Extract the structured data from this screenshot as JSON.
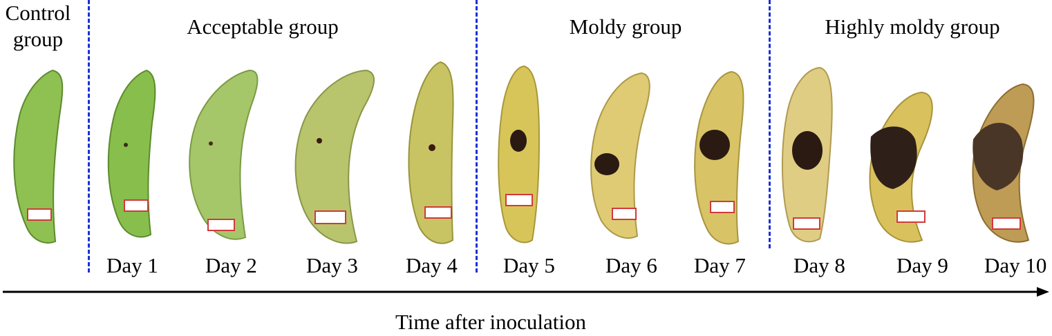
{
  "groups": {
    "control_line1": "Control",
    "control_line2": "group",
    "acceptable": "Acceptable group",
    "moldy": "Moldy group",
    "highly_moldy": "Highly moldy group"
  },
  "days": [
    "Day 1",
    "Day 2",
    "Day 3",
    "Day 4",
    "Day 5",
    "Day 6",
    "Day 7",
    "Day 8",
    "Day 9",
    "Day 10"
  ],
  "axis_label": "Time after inoculation",
  "colors": {
    "divider": "#1a2fd6",
    "control": "#8fc052",
    "day1": "#88be4c",
    "day2": "#a6c66a",
    "day3": "#b9c56c",
    "day4": "#c8c464",
    "day5": "#d8c55a",
    "day6": "#dfcb74",
    "day7": "#d8c466",
    "day8": "#e0cd84",
    "day9": "#d9c25e",
    "day10": "#bf9c55",
    "mold": "#2a1a12"
  }
}
